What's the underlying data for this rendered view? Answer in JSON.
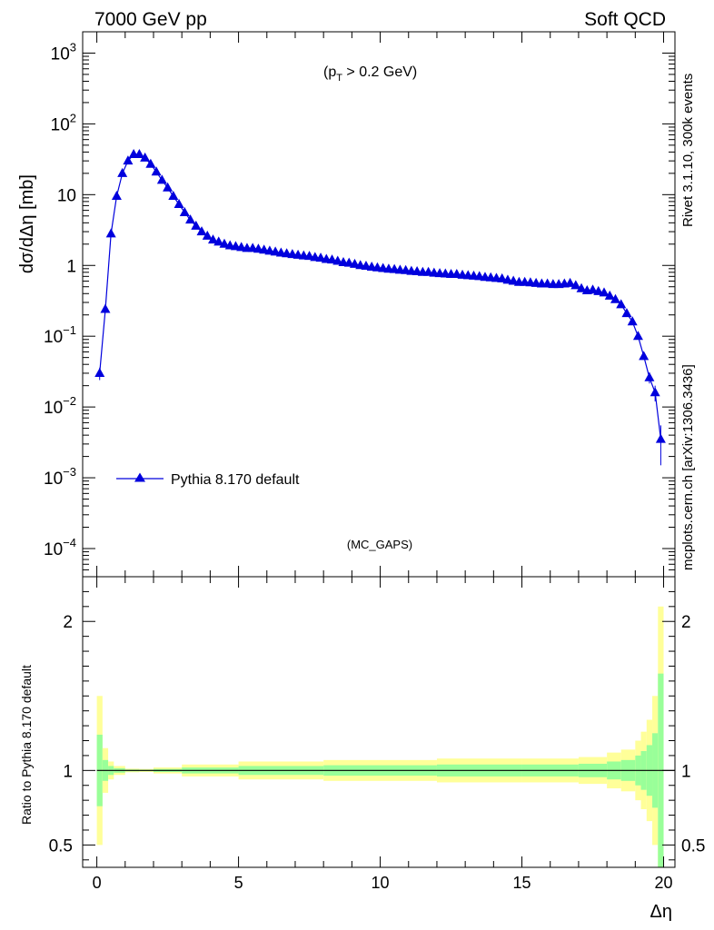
{
  "header": {
    "left": "7000 GeV pp",
    "right": "Soft QCD",
    "cut_prefix": "(p",
    "cut_sub": "T",
    "cut_suffix": " > 0.2 GeV)",
    "analysis": "(MC_GAPS)"
  },
  "side_labels": {
    "rivet": "Rivet 3.1.10,  300k events",
    "mcplots": "mcplots.cern.ch [arXiv:1306.3436]"
  },
  "colors": {
    "series": "#0000dd",
    "band_inner": "#99ff99",
    "band_outer": "#ffff99",
    "side_text": "#888888"
  },
  "chart_data": [
    {
      "type": "line",
      "ylabel": "dσ/dΔη [mb]",
      "yscale": "log",
      "xlim": [
        -0.5,
        20.4
      ],
      "ylim": [
        4e-05,
        2000
      ],
      "y_ticks": [
        {
          "v": 1000,
          "base": "10",
          "exp": "3"
        },
        {
          "v": 100,
          "base": "10",
          "exp": "2"
        },
        {
          "v": 10,
          "base": "10",
          "exp": ""
        },
        {
          "v": 1,
          "base": "1",
          "exp": ""
        },
        {
          "v": 0.1,
          "base": "10",
          "exp": "−1"
        },
        {
          "v": 0.01,
          "base": "10",
          "exp": "−2"
        },
        {
          "v": 0.001,
          "base": "10",
          "exp": "−3"
        },
        {
          "v": 0.0001,
          "base": "10",
          "exp": "−4"
        }
      ],
      "legend": "top-left",
      "series": [
        {
          "name": "Pythia 8.170 default",
          "x": [
            0.1,
            0.3,
            0.5,
            0.7,
            0.9,
            1.1,
            1.3,
            1.5,
            1.7,
            1.9,
            2.1,
            2.3,
            2.5,
            2.7,
            2.9,
            3.1,
            3.3,
            3.5,
            3.7,
            3.9,
            4.1,
            4.3,
            4.5,
            4.7,
            4.9,
            5.1,
            5.3,
            5.5,
            5.7,
            5.9,
            6.1,
            6.3,
            6.5,
            6.7,
            6.9,
            7.1,
            7.3,
            7.5,
            7.7,
            7.9,
            8.1,
            8.3,
            8.5,
            8.7,
            8.9,
            9.1,
            9.3,
            9.5,
            9.7,
            9.9,
            10.1,
            10.3,
            10.5,
            10.7,
            10.9,
            11.1,
            11.3,
            11.5,
            11.7,
            11.9,
            12.1,
            12.3,
            12.5,
            12.7,
            12.9,
            13.1,
            13.3,
            13.5,
            13.7,
            13.9,
            14.1,
            14.3,
            14.5,
            14.7,
            14.9,
            15.1,
            15.3,
            15.5,
            15.7,
            15.9,
            16.1,
            16.3,
            16.5,
            16.7,
            16.9,
            17.1,
            17.3,
            17.5,
            17.7,
            17.9,
            18.1,
            18.3,
            18.5,
            18.7,
            18.9,
            19.1,
            19.3,
            19.5,
            19.7,
            19.9
          ],
          "y": [
            0.03,
            0.24,
            2.8,
            9.5,
            20,
            30,
            37,
            37,
            33,
            27,
            21,
            16,
            12.5,
            9.5,
            7.3,
            5.6,
            4.4,
            3.6,
            3.0,
            2.6,
            2.3,
            2.15,
            2.0,
            1.9,
            1.85,
            1.8,
            1.75,
            1.75,
            1.7,
            1.65,
            1.6,
            1.55,
            1.5,
            1.47,
            1.43,
            1.4,
            1.37,
            1.35,
            1.3,
            1.27,
            1.22,
            1.2,
            1.15,
            1.1,
            1.08,
            1.04,
            1.0,
            0.98,
            0.95,
            0.93,
            0.91,
            0.89,
            0.88,
            0.86,
            0.85,
            0.83,
            0.82,
            0.8,
            0.8,
            0.78,
            0.77,
            0.76,
            0.75,
            0.75,
            0.73,
            0.72,
            0.71,
            0.7,
            0.68,
            0.67,
            0.66,
            0.65,
            0.62,
            0.6,
            0.58,
            0.58,
            0.57,
            0.56,
            0.55,
            0.55,
            0.54,
            0.54,
            0.55,
            0.56,
            0.52,
            0.47,
            0.44,
            0.45,
            0.43,
            0.41,
            0.37,
            0.33,
            0.28,
            0.21,
            0.16,
            0.1,
            0.052,
            0.026,
            0.016,
            0.0035
          ],
          "yerr_low": [
            0.006,
            0,
            0,
            0,
            0,
            0,
            0,
            0,
            0,
            0,
            0,
            0,
            0,
            0,
            0,
            0,
            0,
            0,
            0,
            0,
            0,
            0,
            0,
            0,
            0,
            0,
            0,
            0,
            0,
            0,
            0,
            0,
            0,
            0,
            0,
            0,
            0,
            0,
            0,
            0,
            0,
            0,
            0,
            0,
            0,
            0,
            0,
            0,
            0,
            0,
            0,
            0,
            0,
            0,
            0,
            0,
            0,
            0,
            0,
            0,
            0,
            0,
            0,
            0,
            0,
            0,
            0,
            0,
            0,
            0,
            0,
            0,
            0,
            0,
            0,
            0,
            0,
            0,
            0,
            0,
            0,
            0,
            0,
            0,
            0,
            0,
            0,
            0,
            0,
            0,
            0,
            0,
            0,
            0,
            0.01,
            0.007,
            0.005,
            0.0045,
            0.004,
            0.002
          ],
          "yerr_high": [
            0.006,
            0,
            0,
            0,
            0,
            0,
            0,
            0,
            0,
            0,
            0,
            0,
            0,
            0,
            0,
            0,
            0,
            0,
            0,
            0,
            0,
            0,
            0,
            0,
            0,
            0,
            0,
            0,
            0,
            0,
            0,
            0,
            0,
            0,
            0,
            0,
            0,
            0,
            0,
            0,
            0,
            0,
            0,
            0,
            0,
            0,
            0,
            0,
            0,
            0,
            0,
            0,
            0,
            0,
            0,
            0,
            0,
            0,
            0,
            0,
            0,
            0,
            0,
            0,
            0,
            0,
            0,
            0,
            0,
            0,
            0,
            0,
            0,
            0,
            0,
            0,
            0,
            0,
            0,
            0,
            0,
            0,
            0,
            0,
            0,
            0,
            0,
            0,
            0,
            0,
            0,
            0,
            0,
            0,
            0.01,
            0.007,
            0.006,
            0.005,
            0.004,
            0.002
          ]
        }
      ]
    },
    {
      "type": "area",
      "ylabel": "Ratio to Pythia 8.170 default",
      "xlabel": "Δη",
      "xlim": [
        -0.5,
        20.4
      ],
      "ylim": [
        0.35,
        2.3
      ],
      "x_ticks": [
        0,
        5,
        10,
        15,
        20
      ],
      "y_ticks": [
        {
          "v": 0.5,
          "label": "0.5"
        },
        {
          "v": 1,
          "label": "1"
        },
        {
          "v": 2,
          "label": "2"
        }
      ],
      "reference": 1,
      "bins": {
        "edges": [
          0,
          0.2,
          0.4,
          0.6,
          1,
          1.5,
          2,
          3,
          5,
          8,
          12,
          15,
          17,
          18,
          18.5,
          19,
          19.2,
          19.4,
          19.6,
          19.8,
          20
        ],
        "inner_half_width": [
          0.24,
          0.07,
          0.03,
          0.015,
          0.006,
          0.005,
          0.01,
          0.02,
          0.03,
          0.035,
          0.04,
          0.04,
          0.045,
          0.06,
          0.07,
          0.1,
          0.13,
          0.17,
          0.25,
          0.65
        ],
        "outer_half_width": [
          0.5,
          0.15,
          0.06,
          0.03,
          0.012,
          0.01,
          0.02,
          0.04,
          0.06,
          0.07,
          0.08,
          0.08,
          0.09,
          0.12,
          0.14,
          0.2,
          0.26,
          0.34,
          0.5,
          1.1
        ]
      }
    }
  ]
}
